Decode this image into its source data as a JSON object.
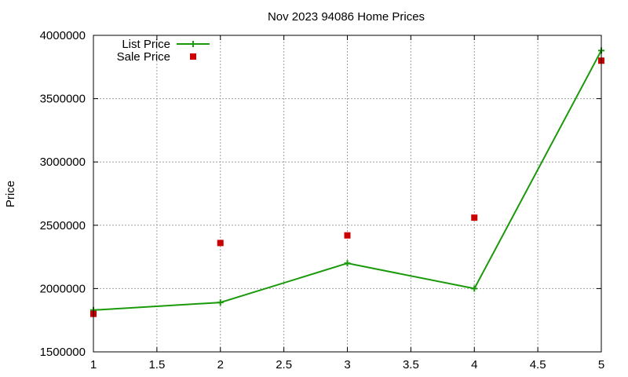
{
  "chart_data": {
    "type": "line",
    "title": "Nov 2023 94086 Home Prices",
    "xlabel": "",
    "ylabel": "Price",
    "xlim": [
      1,
      5
    ],
    "ylim": [
      1500000,
      4000000
    ],
    "x_ticks": [
      "1",
      "1.5",
      "2",
      "2.5",
      "3",
      "3.5",
      "4",
      "4.5",
      "5"
    ],
    "y_ticks": [
      "1500000",
      "2000000",
      "2500000",
      "3000000",
      "3500000",
      "4000000"
    ],
    "grid": true,
    "legend_position": "top-left",
    "series": [
      {
        "name": "List Price",
        "style": "linespoints",
        "color": "#1a9a0a",
        "x": [
          1,
          2,
          3,
          4,
          5
        ],
        "values": [
          1830000,
          1890000,
          2200000,
          2000000,
          3880000
        ]
      },
      {
        "name": "Sale Price",
        "style": "points",
        "color": "#cc0000",
        "x": [
          1,
          2,
          3,
          4,
          5
        ],
        "values": [
          1800000,
          2360000,
          2420000,
          2560000,
          3800000
        ]
      }
    ]
  }
}
